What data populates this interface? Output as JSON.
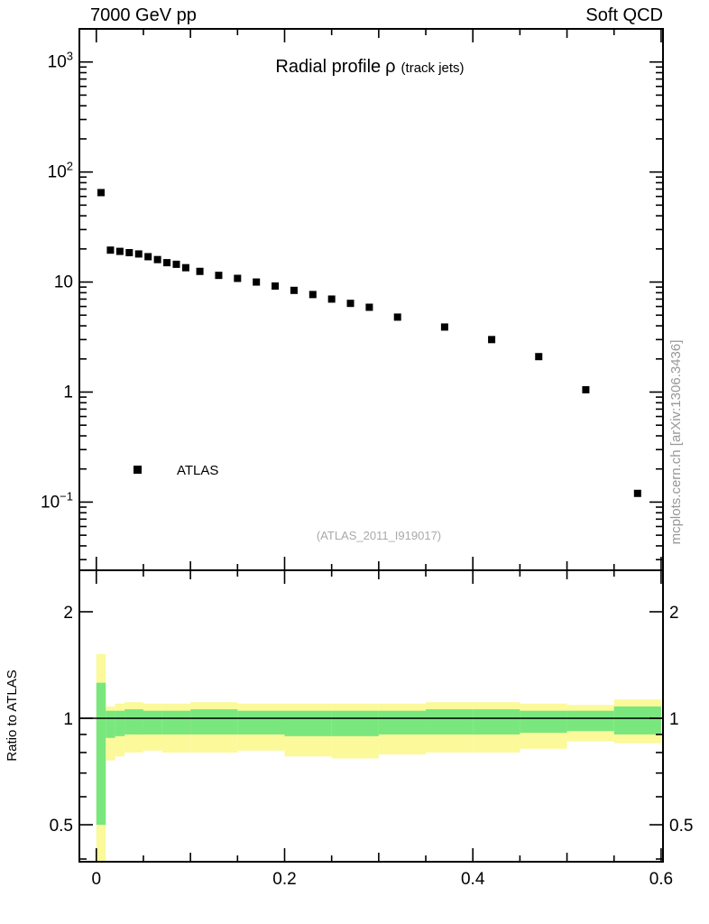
{
  "header": {
    "left": "7000 GeV pp",
    "right": "Soft QCD"
  },
  "plot": {
    "title_main": "Radial profile",
    "title_symbol": "ρ",
    "title_paren": "(track jets)",
    "legend_label": "ATLAS",
    "ref_label": "(ATLAS_2011_I919017)",
    "watermark": "mcplots.cern.ch [arXiv:1306.3436]",
    "ratio_ylabel": "Ratio to ATLAS"
  },
  "colors": {
    "band_outer": "#fbf99a",
    "band_inner": "#79e77d",
    "marker": "#000000",
    "frame": "#000000"
  },
  "chart_data": {
    "type": "scatter",
    "title": "Radial profile ρ (track jets)",
    "xlabel": "",
    "xlim": [
      -0.018,
      0.602
    ],
    "xticks": [
      {
        "v": 0.0,
        "label": "0"
      },
      {
        "v": 0.2,
        "label": "0.2"
      },
      {
        "v": 0.4,
        "label": "0.4"
      },
      {
        "v": 0.6,
        "label": "0.6"
      }
    ],
    "top_panel": {
      "yscale": "log",
      "ylim": [
        0.024,
        2000
      ],
      "yticks": [
        {
          "v": 0.1,
          "base": "10",
          "exp": "−1"
        },
        {
          "v": 1,
          "base": "1"
        },
        {
          "v": 10,
          "base": "10"
        },
        {
          "v": 100,
          "base": "10",
          "exp": "2"
        },
        {
          "v": 1000,
          "base": "10",
          "exp": "3"
        }
      ],
      "series": [
        {
          "name": "ATLAS",
          "marker": "square",
          "color": "#000000",
          "points": [
            [
              0.005,
              65.0
            ],
            [
              0.015,
              19.5
            ],
            [
              0.025,
              19.0
            ],
            [
              0.035,
              18.5
            ],
            [
              0.045,
              18.0
            ],
            [
              0.055,
              17.0
            ],
            [
              0.065,
              16.0
            ],
            [
              0.075,
              15.0
            ],
            [
              0.085,
              14.5
            ],
            [
              0.095,
              13.5
            ],
            [
              0.11,
              12.5
            ],
            [
              0.13,
              11.5
            ],
            [
              0.15,
              10.8
            ],
            [
              0.17,
              10.0
            ],
            [
              0.19,
              9.2
            ],
            [
              0.21,
              8.4
            ],
            [
              0.23,
              7.7
            ],
            [
              0.25,
              7.0
            ],
            [
              0.27,
              6.4
            ],
            [
              0.29,
              5.9
            ],
            [
              0.32,
              4.8
            ],
            [
              0.37,
              3.9
            ],
            [
              0.42,
              3.0
            ],
            [
              0.47,
              2.1
            ],
            [
              0.52,
              1.05
            ],
            [
              0.575,
              0.12
            ]
          ]
        }
      ]
    },
    "bottom_panel": {
      "yscale": "log",
      "ylim": [
        0.393,
        2.62
      ],
      "yticks": [
        {
          "v": 0.5,
          "label": "0.5"
        },
        {
          "v": 1,
          "label": "1"
        },
        {
          "v": 2,
          "label": "2"
        }
      ],
      "reference_line": 1,
      "bands": [
        {
          "x": [
            0.0,
            0.01
          ],
          "yellow": [
            0.36,
            1.52
          ],
          "green": [
            0.5,
            1.26
          ]
        },
        {
          "x": [
            0.01,
            0.02
          ],
          "yellow": [
            0.76,
            1.08
          ],
          "green": [
            0.88,
            1.05
          ]
        },
        {
          "x": [
            0.02,
            0.03
          ],
          "yellow": [
            0.78,
            1.1
          ],
          "green": [
            0.89,
            1.05
          ]
        },
        {
          "x": [
            0.03,
            0.05
          ],
          "yellow": [
            0.8,
            1.11
          ],
          "green": [
            0.9,
            1.06
          ]
        },
        {
          "x": [
            0.05,
            0.07
          ],
          "yellow": [
            0.81,
            1.1
          ],
          "green": [
            0.9,
            1.05
          ]
        },
        {
          "x": [
            0.07,
            0.1
          ],
          "yellow": [
            0.8,
            1.1
          ],
          "green": [
            0.9,
            1.05
          ]
        },
        {
          "x": [
            0.1,
            0.15
          ],
          "yellow": [
            0.8,
            1.11
          ],
          "green": [
            0.9,
            1.06
          ]
        },
        {
          "x": [
            0.15,
            0.2
          ],
          "yellow": [
            0.81,
            1.1
          ],
          "green": [
            0.9,
            1.05
          ]
        },
        {
          "x": [
            0.2,
            0.25
          ],
          "yellow": [
            0.78,
            1.1
          ],
          "green": [
            0.89,
            1.05
          ]
        },
        {
          "x": [
            0.25,
            0.3
          ],
          "yellow": [
            0.77,
            1.1
          ],
          "green": [
            0.89,
            1.05
          ]
        },
        {
          "x": [
            0.3,
            0.35
          ],
          "yellow": [
            0.79,
            1.1
          ],
          "green": [
            0.9,
            1.05
          ]
        },
        {
          "x": [
            0.35,
            0.4
          ],
          "yellow": [
            0.8,
            1.11
          ],
          "green": [
            0.9,
            1.06
          ]
        },
        {
          "x": [
            0.4,
            0.45
          ],
          "yellow": [
            0.8,
            1.11
          ],
          "green": [
            0.9,
            1.06
          ]
        },
        {
          "x": [
            0.45,
            0.5
          ],
          "yellow": [
            0.82,
            1.1
          ],
          "green": [
            0.91,
            1.05
          ]
        },
        {
          "x": [
            0.5,
            0.55
          ],
          "yellow": [
            0.86,
            1.09
          ],
          "green": [
            0.92,
            1.05
          ]
        },
        {
          "x": [
            0.55,
            0.6
          ],
          "yellow": [
            0.85,
            1.13
          ],
          "green": [
            0.9,
            1.08
          ]
        }
      ]
    }
  }
}
